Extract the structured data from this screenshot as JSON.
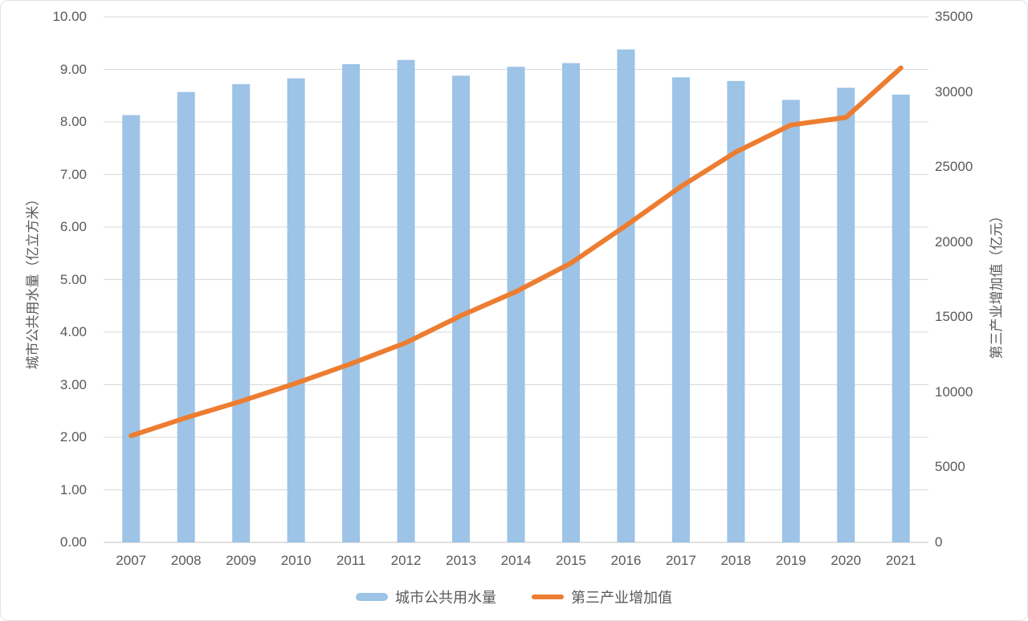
{
  "chart_data": {
    "type": "bar-line-combo",
    "title": "",
    "categories": [
      "2007",
      "2008",
      "2009",
      "2010",
      "2011",
      "2012",
      "2013",
      "2014",
      "2015",
      "2016",
      "2017",
      "2018",
      "2019",
      "2020",
      "2021"
    ],
    "series": [
      {
        "name": "城市公共用水量",
        "type": "bar",
        "axis": "left",
        "unit": "亿立方米",
        "values": [
          8.13,
          8.57,
          8.72,
          8.83,
          9.1,
          9.18,
          8.88,
          9.05,
          9.12,
          9.38,
          8.85,
          8.78,
          8.42,
          8.65,
          8.52
        ]
      },
      {
        "name": "第三产业增加值",
        "type": "line",
        "axis": "right",
        "unit": "亿元",
        "values": [
          7100,
          8300,
          9400,
          10600,
          11900,
          13300,
          15100,
          16700,
          18600,
          21100,
          23700,
          26000,
          27800,
          28300,
          31600
        ]
      }
    ],
    "left_axis": {
      "title": "城市公共用水量（亿立方米）",
      "min": 0,
      "max": 10,
      "step": 1,
      "tick_labels": [
        "0.00",
        "1.00",
        "2.00",
        "3.00",
        "4.00",
        "5.00",
        "6.00",
        "7.00",
        "8.00",
        "9.00",
        "10.00"
      ]
    },
    "right_axis": {
      "title": "第三产业增加值（亿元）",
      "min": 0,
      "max": 35000,
      "step": 5000,
      "tick_labels": [
        "0",
        "5000",
        "10000",
        "15000",
        "20000",
        "25000",
        "30000",
        "35000"
      ]
    },
    "grid": true,
    "legend_position": "bottom",
    "colors": {
      "bar": "#9DC3E6",
      "line": "#ED7D31",
      "grid": "#D9D9D9",
      "axis_line": "#C0C0C0",
      "text": "#595959"
    }
  }
}
